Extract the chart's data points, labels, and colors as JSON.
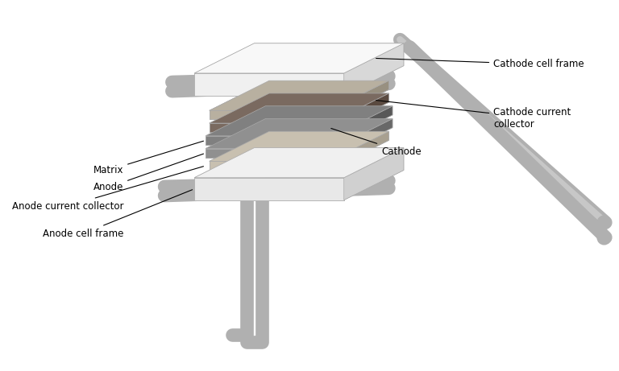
{
  "background_color": "#ffffff",
  "figure_size": [
    7.68,
    4.61
  ],
  "dpi": 100,
  "labels": {
    "cathode_cell_frame": "Cathode cell frame",
    "cathode_current_collector": "Cathode current\ncollector",
    "cathode": "Cathode",
    "matrix": "Matrix",
    "anode": "Anode",
    "anode_current_collector": "Anode current collector",
    "anode_cell_frame": "Anode cell frame"
  },
  "colors": {
    "frame_light": "#e8e8e8",
    "frame_shadow": "#c8c8c8",
    "frame_top": "#f2f2f2",
    "cathode_current_top": "#b8b0a0",
    "cathode_current_shadow": "#9a9080",
    "cathode_top": "#7a6a60",
    "cathode_shadow": "#5a4a40",
    "matrix_top": "#888888",
    "matrix_shadow": "#606060",
    "anode_top": "#909090",
    "anode_shadow": "#686868",
    "anode_current_top": "#c8c0b0",
    "anode_current_shadow": "#a8a090",
    "pipe_fill": "#b0b0b0",
    "pipe_edge": "#888888",
    "annotation_line": "#000000",
    "text_color": "#000000"
  },
  "annotation_fontsize": 8.5,
  "title": ""
}
